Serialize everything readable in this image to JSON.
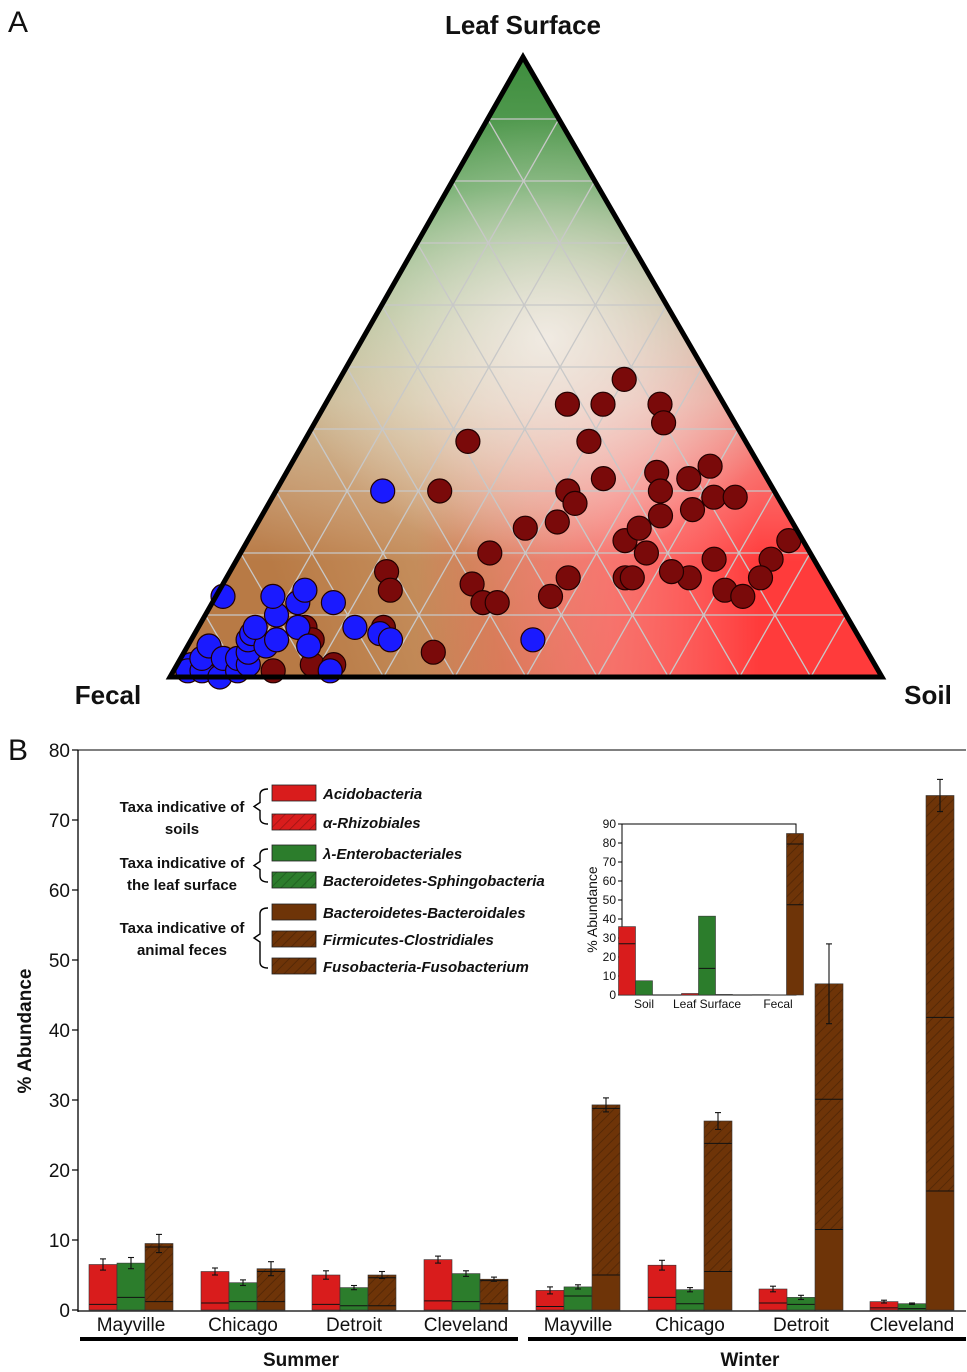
{
  "panels": {
    "a_label": "A",
    "b_label": "B"
  },
  "colors": {
    "soil": "#d91c1c",
    "leaf": "#2c7d2c",
    "fecal": "#6e3408",
    "dot_dark": "#7a0a0a",
    "dot_blue": "#1a1aff",
    "ternary_leaf": "#3c8c3c",
    "ternary_soil": "#ff3b3b",
    "ternary_fecal": "#c48a55"
  },
  "chart_data": [
    {
      "type": "scatter",
      "subtype": "ternary",
      "vertices": {
        "top": "Leaf Surface",
        "left": "Fecal",
        "right": "Soil"
      },
      "grid": true,
      "series": [
        {
          "color": "dark red",
          "points": [
            [
              0.85,
              0.01,
              0.14
            ],
            [
              0.77,
              0.08,
              0.15
            ],
            [
              0.77,
              0.06,
              0.17
            ],
            [
              0.79,
              0.02,
              0.19
            ],
            [
              0.76,
              0.02,
              0.22
            ],
            [
              0.61,
              0.17,
              0.22
            ],
            [
              0.62,
              0.14,
              0.24
            ],
            [
              0.66,
              0.08,
              0.26
            ],
            [
              0.47,
              0.3,
              0.23
            ],
            [
              0.61,
              0.04,
              0.35
            ],
            [
              0.5,
              0.15,
              0.35
            ],
            [
              0.45,
              0.2,
              0.35
            ],
            [
              0.5,
              0.12,
              0.38
            ],
            [
              0.48,
              0.12,
              0.4
            ],
            [
              0.39,
              0.38,
              0.23
            ],
            [
              0.38,
              0.24,
              0.38
            ],
            [
              0.33,
              0.25,
              0.42
            ],
            [
              0.29,
              0.3,
              0.41
            ],
            [
              0.29,
              0.28,
              0.43
            ],
            [
              0.4,
              0.13,
              0.47
            ],
            [
              0.36,
              0.16,
              0.48
            ],
            [
              0.22,
              0.44,
              0.34
            ],
            [
              0.17,
              0.44,
              0.39
            ],
            [
              0.22,
              0.38,
              0.4
            ],
            [
              0.23,
              0.32,
              0.45
            ],
            [
              0.25,
              0.22,
              0.53
            ],
            [
              0.28,
              0.16,
              0.56
            ],
            [
              0.12,
              0.48,
              0.4
            ],
            [
              0.09,
              0.44,
              0.47
            ],
            [
              0.1,
              0.41,
              0.49
            ],
            [
              0.15,
              0.33,
              0.52
            ],
            [
              0.16,
              0.3,
              0.54
            ],
            [
              0.23,
              0.2,
              0.57
            ],
            [
              0.19,
              0.16,
              0.65
            ],
            [
              0.15,
              0.14,
              0.71
            ],
            [
              0.21,
              0.17,
              0.62
            ],
            [
              0.27,
              0.16,
              0.57
            ],
            [
              0.22,
              0.24,
              0.54
            ],
            [
              0.18,
              0.26,
              0.56
            ],
            [
              0.13,
              0.27,
              0.6
            ],
            [
              0.09,
              0.29,
              0.62
            ],
            [
              0.06,
              0.29,
              0.65
            ],
            [
              0.07,
              0.34,
              0.59
            ],
            [
              0.11,
              0.32,
              0.57
            ],
            [
              0.02,
              0.22,
              0.76
            ],
            [
              0.06,
              0.19,
              0.75
            ],
            [
              0.09,
              0.16,
              0.75
            ],
            [
              0.13,
              0.13,
              0.74
            ],
            [
              0.14,
              0.19,
              0.67
            ]
          ]
        },
        {
          "color": "blue",
          "points": [
            [
              0.96,
              0.02,
              0.02
            ],
            [
              0.97,
              0.01,
              0.02
            ],
            [
              0.95,
              0.01,
              0.04
            ],
            [
              0.94,
              0.03,
              0.03
            ],
            [
              0.93,
              0.0,
              0.07
            ],
            [
              0.92,
              0.05,
              0.03
            ],
            [
              0.91,
              0.03,
              0.06
            ],
            [
              0.9,
              0.01,
              0.09
            ],
            [
              0.89,
              0.03,
              0.08
            ],
            [
              0.88,
              0.02,
              0.1
            ],
            [
              0.87,
              0.04,
              0.09
            ],
            [
              0.86,
              0.06,
              0.08
            ],
            [
              0.86,
              0.13,
              0.01
            ],
            [
              0.85,
              0.07,
              0.08
            ],
            [
              0.84,
              0.05,
              0.11
            ],
            [
              0.84,
              0.08,
              0.08
            ],
            [
              0.82,
              0.06,
              0.12
            ],
            [
              0.8,
              0.1,
              0.1
            ],
            [
              0.79,
              0.13,
              0.08
            ],
            [
              0.78,
              0.08,
              0.14
            ],
            [
              0.78,
              0.05,
              0.17
            ],
            [
              0.76,
              0.12,
              0.12
            ],
            [
              0.77,
              0.01,
              0.22
            ],
            [
              0.74,
              0.14,
              0.12
            ],
            [
              0.71,
              0.12,
              0.17
            ],
            [
              0.7,
              0.08,
              0.22
            ],
            [
              0.67,
              0.07,
              0.26
            ],
            [
              0.66,
              0.06,
              0.28
            ],
            [
              0.55,
              0.3,
              0.15
            ],
            [
              0.46,
              0.06,
              0.48
            ]
          ]
        }
      ]
    },
    {
      "type": "bar",
      "subtype": "stacked-grouped",
      "ylabel": "% Abundance",
      "ylim": [
        0,
        80
      ],
      "yticks": [
        0,
        10,
        20,
        30,
        40,
        50,
        60,
        70,
        80
      ],
      "categories": [
        "Mayville",
        "Chicago",
        "Detroit",
        "Cleveland",
        "Mayville",
        "Chicago",
        "Detroit",
        "Cleveland"
      ],
      "groups": [
        {
          "label": "Summer",
          "categories": [
            "Mayville",
            "Chicago",
            "Detroit",
            "Cleveland"
          ]
        },
        {
          "label": "Winter",
          "categories": [
            "Mayville",
            "Chicago",
            "Detroit",
            "Cleveland"
          ]
        }
      ],
      "series": [
        {
          "name": "Soil taxa",
          "values": [
            6.5,
            5.5,
            5.0,
            7.2,
            2.8,
            6.4,
            3.0,
            1.2
          ],
          "errors": [
            0.8,
            0.5,
            0.6,
            0.5,
            0.5,
            0.7,
            0.4,
            0.2
          ],
          "inner_segments": [
            [
              0.8
            ],
            [
              1.0
            ],
            [
              0.8
            ],
            [
              1.3
            ],
            [
              0.5
            ],
            [
              1.8
            ],
            [
              1.0
            ],
            [
              0.3
            ]
          ]
        },
        {
          "name": "Leaf surface taxa",
          "values": [
            6.7,
            3.9,
            3.2,
            5.2,
            3.3,
            2.9,
            1.8,
            0.9
          ],
          "errors": [
            0.8,
            0.4,
            0.3,
            0.4,
            0.3,
            0.3,
            0.3,
            0.1
          ],
          "inner_segments": [
            [
              1.8
            ],
            [
              1.2
            ],
            [
              0.6
            ],
            [
              1.2
            ],
            [
              2.0
            ],
            [
              0.9
            ],
            [
              0.8
            ],
            [
              0.2
            ]
          ]
        },
        {
          "name": "Fecal taxa",
          "values": [
            9.5,
            5.9,
            5.0,
            4.4,
            29.3,
            27.0,
            46.6,
            73.5
          ],
          "errors": [
            1.3,
            1.0,
            0.5,
            0.3,
            1.0,
            1.2,
            5.7,
            2.3
          ],
          "inner_segments": [
            [
              1.2,
              9.0
            ],
            [
              1.2,
              5.5
            ],
            [
              0.6,
              4.6
            ],
            [
              0.9,
              4.2
            ],
            [
              5.0,
              28.8
            ],
            [
              5.5,
              23.8
            ],
            [
              11.5,
              30.1
            ],
            [
              17.0,
              41.8
            ]
          ]
        }
      ],
      "legend": {
        "groups": [
          {
            "caption_lines": [
              "Taxa indicative of",
              "soils"
            ],
            "entries": [
              {
                "label": "Acidobacteria",
                "color": "#d91c1c",
                "hatch": false
              },
              {
                "label": "α-Rhizobiales",
                "color": "#d91c1c",
                "hatch": true
              }
            ]
          },
          {
            "caption_lines": [
              "Taxa indicative of",
              "the leaf surface"
            ],
            "entries": [
              {
                "label": "λ-Enterobacteriales",
                "color": "#2c7d2c",
                "hatch": false
              },
              {
                "label": "Bacteroidetes-Sphingobacteria",
                "color": "#2c7d2c",
                "hatch": true
              }
            ]
          },
          {
            "caption_lines": [
              "Taxa indicative of",
              "animal feces"
            ],
            "entries": [
              {
                "label": "Bacteroidetes-Bacteroidales",
                "color": "#6e3408",
                "hatch": false
              },
              {
                "label": "Firmicutes-Clostridiales",
                "color": "#6e3408",
                "hatch": true
              },
              {
                "label": "Fusobacteria-Fusobacterium",
                "color": "#6e3408",
                "hatch": true
              }
            ]
          }
        ]
      }
    },
    {
      "type": "bar",
      "subtype": "inset",
      "ylabel": "% Abundance",
      "ylim": [
        0,
        90
      ],
      "yticks": [
        0,
        10,
        20,
        30,
        40,
        50,
        60,
        70,
        80,
        90
      ],
      "categories": [
        "Soil",
        "Leaf Surface",
        "Fecal"
      ],
      "series": [
        {
          "name": "Soil taxa",
          "values": [
            36,
            0.8,
            0.2
          ],
          "inner_segments": [
            [
              27
            ],
            [],
            []
          ]
        },
        {
          "name": "Leaf surface taxa",
          "values": [
            7.5,
            41.5,
            0.1
          ],
          "inner_segments": [
            [],
            [
              14
            ],
            []
          ]
        },
        {
          "name": "Fecal taxa",
          "values": [
            0,
            0.3,
            85
          ],
          "inner_segments": [
            [],
            [],
            [
              47.5,
              79.5
            ]
          ]
        }
      ]
    }
  ]
}
